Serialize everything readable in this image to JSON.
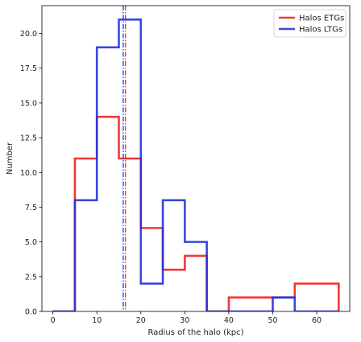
{
  "chart_data": {
    "type": "histogram",
    "xlabel": "Radius of the halo (kpc)",
    "ylabel": "Number",
    "xlim": [
      -2.5,
      67.5
    ],
    "ylim": [
      0,
      22
    ],
    "xticks": [
      0,
      10,
      20,
      30,
      40,
      50,
      60
    ],
    "yticks": [
      0.0,
      2.5,
      5.0,
      7.5,
      10.0,
      12.5,
      15.0,
      17.5,
      20.0
    ],
    "legend_position": "top-right",
    "bin_edges": [
      0,
      5,
      10,
      15,
      20,
      25,
      30,
      35,
      40,
      45,
      50,
      55,
      60,
      65
    ],
    "series": [
      {
        "name": "Halos ETGs",
        "color": "#ee2222",
        "counts": [
          0,
          11,
          14,
          11,
          6,
          3,
          4,
          0,
          1,
          1,
          1,
          2,
          2
        ],
        "median_line": 16.5
      },
      {
        "name": "Halos LTGs",
        "color": "#2233dd",
        "counts": [
          0,
          8,
          19,
          21,
          2,
          8,
          5,
          0,
          0,
          0,
          1,
          0,
          0
        ],
        "median_line": 16.0
      }
    ]
  }
}
